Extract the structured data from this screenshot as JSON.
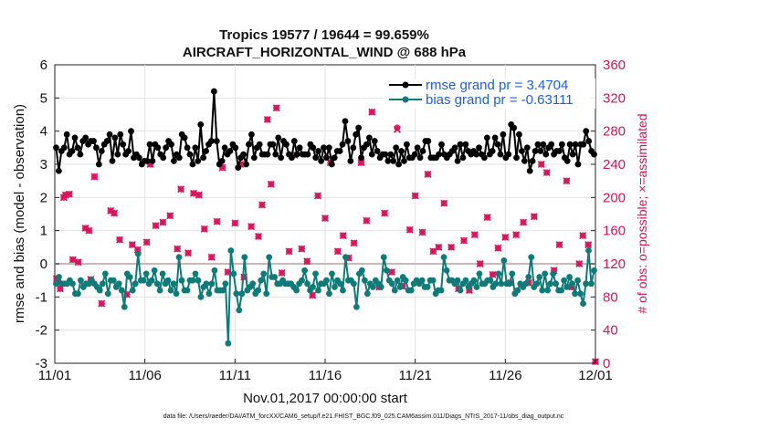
{
  "chart_data": {
    "type": "line",
    "title": "Tropics 19577 / 19644 = 99.659%",
    "subtitle": "AIRCRAFT_HORIZONTAL_WIND @ 688 hPa",
    "xlabel": "Nov.01,2017 00:00:00 start",
    "ylabel": "rmse and bias (model - observation)",
    "ylabel_right": "# of obs: o=possible; ×=assimilated",
    "footnote": "data file: /Users/raeder/DAI/ATM_forcXX/CAM6_setup/f.e21.FHIST_BGC.f09_025.CAM6assim.011/Diags_NTrS_2017-11/obs_diag_output.nc",
    "ylim": [
      -3,
      6
    ],
    "ylim_right": [
      0,
      360
    ],
    "x_range": [
      0,
      30
    ],
    "x_ticks": [
      {
        "pos": 0,
        "label": "11/01"
      },
      {
        "pos": 5,
        "label": "11/06"
      },
      {
        "pos": 10,
        "label": "11/11"
      },
      {
        "pos": 15,
        "label": "11/16"
      },
      {
        "pos": 20,
        "label": "11/21"
      },
      {
        "pos": 25,
        "label": "11/26"
      },
      {
        "pos": 30,
        "label": "12/01"
      }
    ],
    "y_ticks": [
      "-3",
      "-2",
      "-1",
      "0",
      "1",
      "2",
      "3",
      "4",
      "5",
      "6"
    ],
    "y_ticks_right": [
      "0",
      "40",
      "80",
      "120",
      "160",
      "200",
      "240",
      "280",
      "320",
      "360"
    ],
    "colors": {
      "rmse": "#000000",
      "bias": "#0f7b78",
      "obs": "#d4145a",
      "zero": "#c8b8b8"
    },
    "series": [
      {
        "name": "rmse grand pr = 3.4704",
        "values": [
          3.5,
          2.8,
          3.4,
          3.5,
          3.9,
          3.3,
          3.4,
          3.8,
          3.5,
          3.3,
          3.7,
          3.8,
          3.6,
          3.7,
          3.7,
          3.5,
          3.0,
          3.4,
          3.6,
          3.7,
          3.9,
          3.1,
          3.8,
          3.3,
          3.9,
          3.6,
          3.3,
          3.4,
          4.0,
          3.2,
          3.3,
          3.2,
          3.0,
          3.1,
          3.1,
          3.6,
          3.1,
          3.6,
          3.5,
          3.3,
          3.2,
          3.5,
          3.7,
          3.6,
          3.1,
          3.3,
          3.2,
          3.9,
          3.8,
          3.5,
          3.3,
          3.0,
          3.5,
          3.1,
          4.2,
          3.2,
          3.4,
          3.6,
          3.7,
          5.2,
          3.7,
          3.0,
          3.1,
          3.5,
          3.3,
          3.4,
          3.6,
          3.5,
          2.9,
          3.2,
          3.3,
          3.0,
          3.6,
          3.9,
          3.2,
          3.5,
          3.6,
          3.3,
          3.3,
          3.3,
          3.6,
          3.6,
          3.3,
          3.8,
          3.2,
          3.7,
          3.6,
          3.3,
          3.2,
          3.7,
          3.3,
          3.5,
          3.3,
          3.3,
          3.3,
          3.6,
          3.5,
          3.2,
          3.4,
          3.1,
          3.5,
          3.2,
          3.5,
          3.0,
          3.2,
          3.4,
          3.4,
          3.6,
          4.3,
          3.7,
          3.1,
          3.5,
          3.9,
          4.1,
          3.2,
          3.5,
          3.6,
          3.8,
          3.3,
          3.7,
          3.4,
          3.2,
          3.3,
          3.3,
          3.1,
          3.3,
          3.1,
          3.5,
          3.0,
          3.4,
          3.1,
          3.6,
          3.2,
          3.2,
          3.3,
          3.5,
          3.2,
          3.4,
          3.7,
          3.7,
          3.2,
          3.2,
          3.2,
          3.3,
          3.6,
          3.3,
          3.2,
          3.3,
          3.4,
          3.5,
          3.1,
          3.6,
          3.2,
          3.6,
          3.4,
          3.3,
          3.4,
          3.3,
          3.5,
          3.3,
          3.2,
          3.8,
          3.3,
          3.4,
          3.8,
          3.6,
          3.3,
          3.9,
          3.2,
          3.3,
          4.2,
          4.1,
          3.2,
          3.9,
          3.4,
          3.1,
          3.5,
          2.8,
          3.1,
          3.4,
          3.6,
          3.4,
          3.6,
          3.3,
          3.5,
          3.6,
          3.3,
          3.4,
          3.4,
          3.6,
          3.2,
          3.1,
          3.6,
          3.3,
          3.6,
          3.0,
          3.6,
          3.6,
          4.0,
          3.7,
          3.4,
          3.3
        ]
      },
      {
        "name": "bias grand pr = -0.63111",
        "values": [
          -0.6,
          -0.4,
          -0.6,
          -0.6,
          -0.6,
          -0.5,
          -0.6,
          -0.9,
          -0.9,
          -0.5,
          -0.7,
          -0.6,
          -0.6,
          -0.5,
          -0.6,
          -0.7,
          -0.8,
          -0.6,
          -0.3,
          -0.9,
          -0.5,
          -0.5,
          -0.7,
          -0.6,
          -0.8,
          -1.3,
          -0.3,
          -0.4,
          -0.8,
          -0.6,
          0.3,
          -0.5,
          -0.5,
          -0.3,
          -0.6,
          -0.5,
          -0.2,
          -0.6,
          -0.8,
          -0.3,
          -0.6,
          -0.5,
          -0.8,
          -0.6,
          -0.9,
          0.2,
          -0.5,
          -0.8,
          -0.8,
          -0.5,
          -0.5,
          -0.3,
          -0.5,
          -1.0,
          -0.7,
          -0.6,
          -0.9,
          -0.6,
          -0.2,
          -0.8,
          -0.8,
          -0.8,
          -0.6,
          -2.4,
          0.4,
          -0.3,
          -0.9,
          -1.4,
          -0.9,
          0.2,
          -0.8,
          -0.7,
          -0.6,
          -0.9,
          -0.8,
          -0.5,
          -0.3,
          -0.9,
          0.2,
          -0.4,
          -0.4,
          -0.6,
          -0.6,
          -0.5,
          -0.6,
          -0.6,
          -0.6,
          -0.7,
          -0.8,
          -0.6,
          -0.5,
          -0.2,
          -0.6,
          -0.8,
          -0.7,
          -0.3,
          -0.8,
          -0.6,
          -0.6,
          -0.5,
          -0.9,
          -0.3,
          -0.7,
          -0.5,
          -0.6,
          -0.8,
          0.2,
          -0.5,
          -0.5,
          -0.6,
          -1.3,
          -0.3,
          -0.2,
          -0.5,
          -0.9,
          -0.6,
          -0.7,
          -0.5,
          -0.6,
          -0.7,
          0.2,
          -0.2,
          -0.5,
          -0.6,
          -0.8,
          -0.5,
          -0.7,
          -0.4,
          -0.5,
          -0.8,
          -0.8,
          -0.6,
          -0.5,
          -0.6,
          -0.5,
          -0.7,
          -0.7,
          -0.5,
          -0.5,
          -0.9,
          -0.8,
          -0.8,
          0.2,
          -0.2,
          -0.5,
          -0.5,
          -0.6,
          -0.5,
          -0.8,
          -0.6,
          -0.5,
          -0.7,
          -0.6,
          -0.5,
          -0.7,
          -0.3,
          -0.6,
          -0.6,
          -0.5,
          -0.5,
          -0.7,
          -0.6,
          -0.3,
          -0.6,
          0.1,
          -0.6,
          -0.6,
          -0.3,
          -0.9,
          -0.8,
          -0.6,
          -0.7,
          -0.6,
          -0.4,
          0.2,
          -0.7,
          -0.6,
          -0.4,
          -0.8,
          -0.3,
          -0.8,
          -0.6,
          -0.3,
          -0.6,
          -0.8,
          -0.8,
          -0.5,
          -0.7,
          -0.4,
          -0.6,
          -0.9,
          -0.5,
          -0.9,
          -1.2,
          -0.6,
          0.4,
          -0.6,
          -0.2
        ]
      }
    ],
    "obs_possible": [
      [
        0.1,
        102
      ],
      [
        0.3,
        90
      ],
      [
        0.5,
        200
      ],
      [
        0.6,
        203
      ],
      [
        0.8,
        204
      ],
      [
        1.0,
        125
      ],
      [
        1.3,
        122
      ],
      [
        1.7,
        163
      ],
      [
        1.9,
        160
      ],
      [
        2.0,
        101
      ],
      [
        2.2,
        225
      ],
      [
        2.6,
        72
      ],
      [
        3.1,
        184
      ],
      [
        3.3,
        181
      ],
      [
        3.6,
        149
      ],
      [
        4.0,
        83
      ],
      [
        4.3,
        143
      ],
      [
        4.6,
        137
      ],
      [
        5.1,
        146
      ],
      [
        5.3,
        240
      ],
      [
        5.6,
        166
      ],
      [
        6.0,
        170
      ],
      [
        6.4,
        178
      ],
      [
        6.8,
        138
      ],
      [
        7.0,
        210
      ],
      [
        7.4,
        133
      ],
      [
        7.7,
        205
      ],
      [
        8.0,
        203
      ],
      [
        8.3,
        162
      ],
      [
        8.7,
        128
      ],
      [
        9.0,
        171
      ],
      [
        9.3,
        236
      ],
      [
        9.6,
        110
      ],
      [
        10.0,
        169
      ],
      [
        10.3,
        240
      ],
      [
        10.5,
        104
      ],
      [
        10.9,
        165
      ],
      [
        11.3,
        153
      ],
      [
        11.5,
        191
      ],
      [
        11.8,
        294
      ],
      [
        12.0,
        216
      ],
      [
        12.3,
        308
      ],
      [
        12.6,
        109
      ],
      [
        13.0,
        135
      ],
      [
        13.3,
        251
      ],
      [
        13.7,
        138
      ],
      [
        14.0,
        123
      ],
      [
        14.3,
        82
      ],
      [
        14.6,
        202
      ],
      [
        15.0,
        175
      ],
      [
        15.3,
        242
      ],
      [
        15.7,
        135
      ],
      [
        16.0,
        154
      ],
      [
        16.3,
        127
      ],
      [
        16.6,
        145
      ],
      [
        17.0,
        242
      ],
      [
        17.3,
        172
      ],
      [
        17.6,
        303
      ],
      [
        18.0,
        92
      ],
      [
        18.3,
        181
      ],
      [
        18.7,
        110
      ],
      [
        19.0,
        284
      ],
      [
        19.3,
        93
      ],
      [
        19.7,
        161
      ],
      [
        20.0,
        202
      ],
      [
        20.4,
        158
      ],
      [
        20.7,
        228
      ],
      [
        21.0,
        135
      ],
      [
        21.3,
        140
      ],
      [
        21.6,
        193
      ],
      [
        22.0,
        140
      ],
      [
        22.4,
        90
      ],
      [
        22.7,
        148
      ],
      [
        23.0,
        88
      ],
      [
        23.3,
        155
      ],
      [
        23.6,
        120
      ],
      [
        24.0,
        176
      ],
      [
        24.3,
        107
      ],
      [
        24.6,
        139
      ],
      [
        25.0,
        152
      ],
      [
        25.3,
        97
      ],
      [
        25.6,
        155
      ],
      [
        26.0,
        170
      ],
      [
        26.3,
        97
      ],
      [
        26.6,
        177
      ],
      [
        27.0,
        240
      ],
      [
        27.3,
        230
      ],
      [
        27.7,
        112
      ],
      [
        28.0,
        143
      ],
      [
        28.4,
        220
      ],
      [
        28.7,
        92
      ],
      [
        29.1,
        120
      ],
      [
        29.3,
        154
      ],
      [
        29.6,
        143
      ],
      [
        30.0,
        2
      ]
    ],
    "obs_assimilated": [
      [
        0.1,
        102
      ],
      [
        0.3,
        90
      ],
      [
        0.5,
        200
      ],
      [
        0.6,
        203
      ],
      [
        0.8,
        204
      ],
      [
        1.0,
        125
      ],
      [
        1.3,
        122
      ],
      [
        1.7,
        163
      ],
      [
        1.9,
        160
      ],
      [
        2.0,
        101
      ],
      [
        2.2,
        225
      ],
      [
        2.6,
        72
      ],
      [
        3.1,
        184
      ],
      [
        3.3,
        181
      ],
      [
        3.6,
        149
      ],
      [
        4.0,
        83
      ],
      [
        4.3,
        143
      ],
      [
        4.6,
        137
      ],
      [
        5.1,
        146
      ],
      [
        5.3,
        240
      ],
      [
        5.6,
        166
      ],
      [
        6.0,
        170
      ],
      [
        6.4,
        178
      ],
      [
        6.8,
        138
      ],
      [
        7.0,
        210
      ],
      [
        7.4,
        133
      ],
      [
        7.7,
        205
      ],
      [
        8.0,
        203
      ],
      [
        8.3,
        162
      ],
      [
        8.7,
        128
      ],
      [
        9.0,
        171
      ],
      [
        9.3,
        236
      ],
      [
        9.6,
        110
      ],
      [
        10.0,
        169
      ],
      [
        10.3,
        240
      ],
      [
        10.5,
        104
      ],
      [
        10.9,
        165
      ],
      [
        11.3,
        153
      ],
      [
        11.5,
        191
      ],
      [
        11.8,
        294
      ],
      [
        12.0,
        216
      ],
      [
        12.3,
        308
      ],
      [
        12.6,
        109
      ],
      [
        13.0,
        135
      ],
      [
        13.3,
        251
      ],
      [
        13.7,
        138
      ],
      [
        14.0,
        123
      ],
      [
        14.3,
        82
      ],
      [
        14.6,
        202
      ],
      [
        15.0,
        175
      ],
      [
        15.3,
        242
      ],
      [
        15.7,
        135
      ],
      [
        16.0,
        154
      ],
      [
        16.3,
        127
      ],
      [
        16.6,
        145
      ],
      [
        17.0,
        242
      ],
      [
        17.3,
        172
      ],
      [
        17.6,
        303
      ],
      [
        18.0,
        92
      ],
      [
        18.3,
        181
      ],
      [
        18.7,
        110
      ],
      [
        19.0,
        282
      ],
      [
        19.3,
        93
      ],
      [
        19.7,
        161
      ],
      [
        20.0,
        202
      ],
      [
        20.4,
        158
      ],
      [
        20.7,
        228
      ],
      [
        21.0,
        135
      ],
      [
        21.3,
        140
      ],
      [
        21.6,
        193
      ],
      [
        22.0,
        140
      ],
      [
        22.4,
        90
      ],
      [
        22.7,
        148
      ],
      [
        23.0,
        88
      ],
      [
        23.3,
        155
      ],
      [
        23.6,
        120
      ],
      [
        24.0,
        176
      ],
      [
        24.3,
        107
      ],
      [
        24.6,
        139
      ],
      [
        25.0,
        152
      ],
      [
        25.3,
        97
      ],
      [
        25.6,
        155
      ],
      [
        26.0,
        170
      ],
      [
        26.3,
        97
      ],
      [
        26.6,
        177
      ],
      [
        27.0,
        240
      ],
      [
        27.3,
        230
      ],
      [
        27.7,
        112
      ],
      [
        28.0,
        143
      ],
      [
        28.4,
        220
      ],
      [
        28.7,
        92
      ],
      [
        29.1,
        120
      ],
      [
        29.3,
        154
      ],
      [
        29.6,
        143
      ],
      [
        30.0,
        2
      ]
    ],
    "legend_position": "top-right"
  }
}
